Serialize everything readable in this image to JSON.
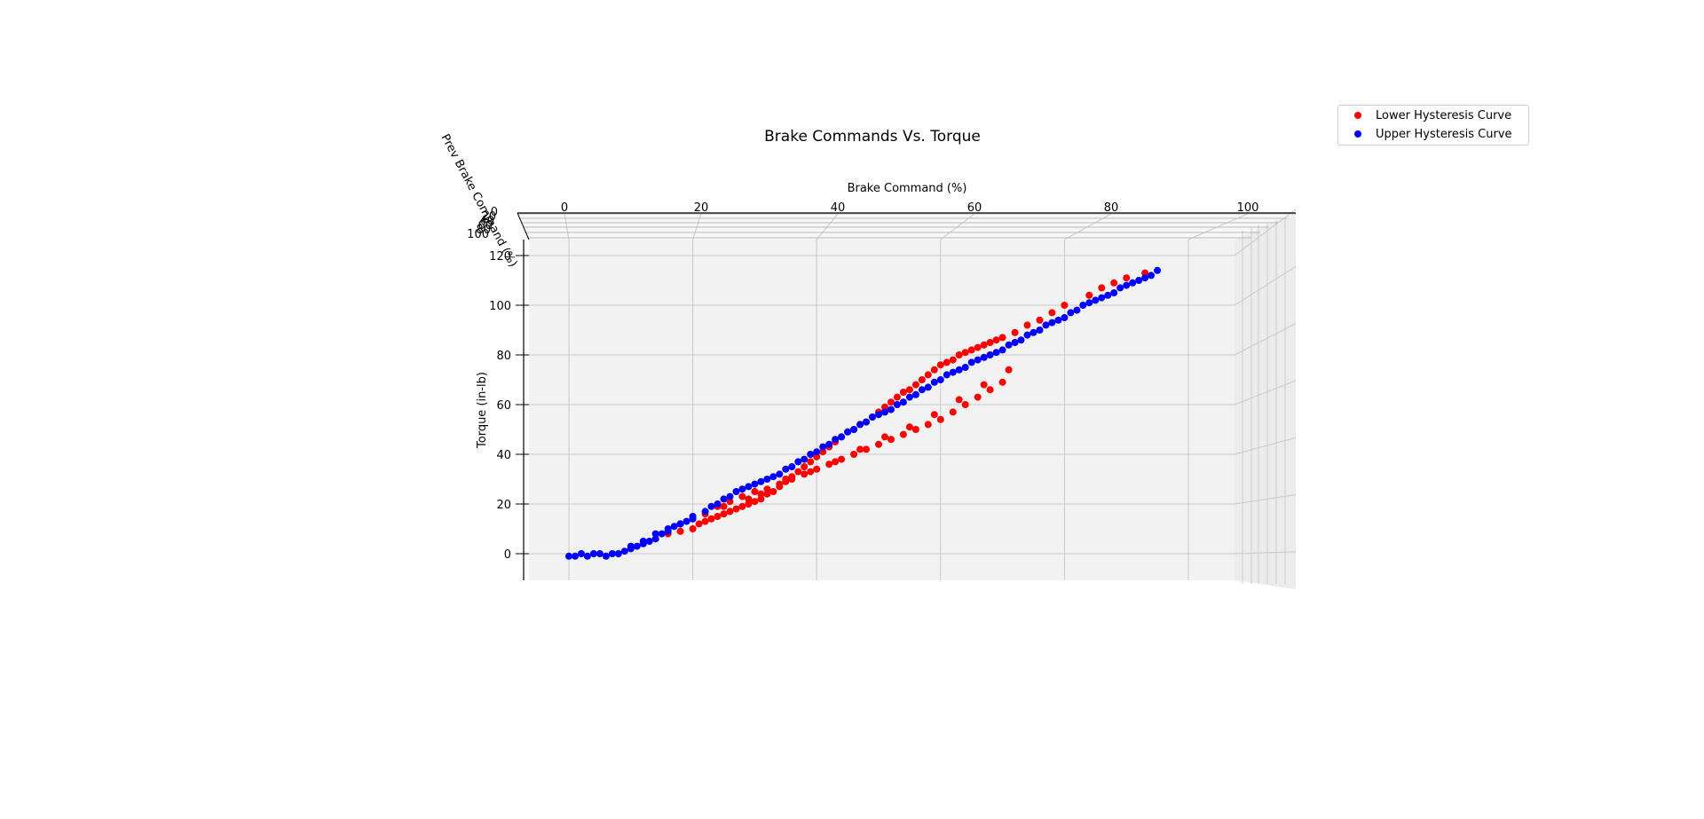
{
  "chart_data": {
    "type": "scatter",
    "title": "Brake Commands Vs. Torque",
    "xlabel": "Brake Command (%)",
    "ylabel": "Torque (in-lb)",
    "zlabel": "Prev Brake Command (%)",
    "xlim": [
      0,
      100
    ],
    "ylim": [
      -10,
      120
    ],
    "x_ticks": [
      "0",
      "20",
      "40",
      "60",
      "80",
      "100"
    ],
    "y_ticks": [
      "0",
      "20",
      "40",
      "60",
      "80",
      "100",
      "120"
    ],
    "depth_ticks": [
      "0",
      "20",
      "40",
      "60",
      "80",
      "100"
    ],
    "grid": true,
    "legend_position": "top-right",
    "series": [
      {
        "name": "Lower Hysteresis Curve",
        "color": "#ff0000",
        "x": [
          20,
          21,
          22,
          23,
          24,
          25,
          26,
          27,
          28,
          29,
          30,
          31,
          32,
          33,
          34,
          35,
          36,
          37,
          38,
          39,
          40,
          41,
          42,
          43,
          44,
          45,
          46,
          47,
          48,
          49,
          50,
          51,
          52,
          53,
          54,
          55,
          56,
          57,
          58,
          59,
          60,
          61,
          62,
          63,
          64,
          65,
          66,
          67,
          68,
          69,
          70,
          72,
          74,
          76,
          78,
          80,
          84,
          86,
          88,
          90,
          93,
          14,
          16,
          18,
          22,
          24,
          26,
          28,
          30,
          32,
          34,
          36,
          38,
          40,
          42,
          44,
          46,
          48,
          50,
          52,
          54,
          56,
          58,
          60,
          62,
          64,
          66,
          68,
          70,
          25,
          29,
          31,
          35,
          39,
          43,
          47,
          51,
          55,
          59,
          63,
          67,
          71
        ],
        "y": [
          10,
          12,
          13,
          14,
          15,
          16,
          17,
          18,
          19,
          20,
          21,
          22,
          24,
          25,
          27,
          29,
          31,
          33,
          35,
          37,
          39,
          41,
          43,
          45,
          47,
          49,
          50,
          52,
          53,
          55,
          57,
          59,
          61,
          63,
          65,
          66,
          68,
          70,
          72,
          74,
          76,
          77,
          78,
          80,
          81,
          82,
          83,
          84,
          85,
          86,
          87,
          89,
          92,
          94,
          97,
          100,
          104,
          107,
          109,
          111,
          113,
          6,
          8,
          9,
          16,
          19,
          21,
          23,
          25,
          26,
          28,
          30,
          32,
          34,
          36,
          38,
          40,
          42,
          44,
          46,
          48,
          50,
          52,
          54,
          57,
          60,
          63,
          66,
          69,
          19,
          22,
          24,
          30,
          33,
          37,
          42,
          47,
          51,
          56,
          62,
          68,
          74
        ]
      },
      {
        "name": "Upper Hysteresis Curve",
        "color": "#0000ff",
        "x": [
          0,
          1,
          2,
          3,
          4,
          5,
          6,
          7,
          8,
          9,
          10,
          11,
          12,
          13,
          14,
          15,
          16,
          17,
          18,
          19,
          20,
          22,
          24,
          26,
          28,
          30,
          32,
          34,
          36,
          38,
          40,
          42,
          44,
          46,
          48,
          50,
          52,
          54,
          56,
          58,
          60,
          62,
          64,
          66,
          68,
          70,
          72,
          74,
          76,
          78,
          80,
          82,
          84,
          86,
          88,
          90,
          91,
          92,
          93,
          94,
          95,
          10,
          12,
          14,
          16,
          18,
          20,
          23,
          25,
          27,
          29,
          31,
          33,
          35,
          37,
          39,
          41,
          43,
          45,
          47,
          49,
          51,
          53,
          55,
          57,
          59,
          61,
          63,
          65,
          67,
          69,
          71,
          73,
          75,
          77,
          79,
          81,
          83,
          85,
          87,
          89
        ],
        "y": [
          -1,
          -1,
          0,
          -1,
          0,
          0,
          -1,
          0,
          0,
          1,
          2,
          3,
          4,
          5,
          6,
          8,
          9,
          11,
          12,
          13,
          14,
          17,
          20,
          23,
          26,
          28,
          30,
          32,
          35,
          38,
          41,
          44,
          47,
          50,
          53,
          56,
          58,
          61,
          64,
          67,
          70,
          73,
          75,
          78,
          80,
          82,
          85,
          88,
          90,
          93,
          95,
          98,
          101,
          103,
          105,
          108,
          109,
          110,
          111,
          112,
          114,
          3,
          5,
          8,
          10,
          12,
          15,
          19,
          22,
          25,
          27,
          29,
          31,
          34,
          37,
          40,
          43,
          46,
          49,
          52,
          55,
          57,
          60,
          63,
          66,
          69,
          72,
          74,
          77,
          79,
          81,
          84,
          86,
          89,
          92,
          94,
          97,
          100,
          102,
          104,
          107
        ]
      }
    ]
  }
}
